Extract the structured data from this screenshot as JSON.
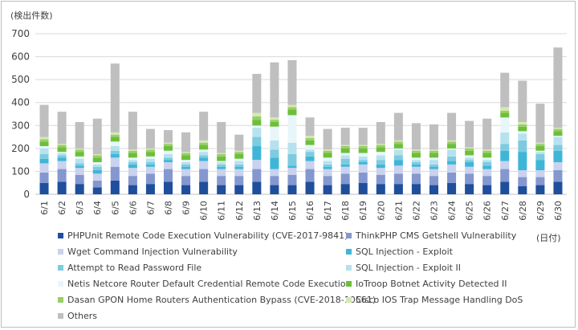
{
  "chart_data": {
    "type": "bar",
    "stacked": true,
    "ylabel": "(検出件数)",
    "xlabel": "(日付)",
    "ylim": [
      0,
      700
    ],
    "yticks": [
      0,
      100,
      200,
      300,
      400,
      500,
      600,
      700
    ],
    "grid": true,
    "legend_position": "bottom",
    "categories": [
      "6/1",
      "6/2",
      "6/3",
      "6/4",
      "6/5",
      "6/6",
      "6/7",
      "6/8",
      "6/9",
      "6/10",
      "6/11",
      "6/12",
      "6/13",
      "6/14",
      "6/15",
      "6/16",
      "6/17",
      "6/18",
      "6/19",
      "6/20",
      "6/21",
      "6/22",
      "6/23",
      "6/24",
      "6/25",
      "6/26",
      "6/27",
      "6/28",
      "6/29",
      "6/30"
    ],
    "series": [
      {
        "name": "PHPUnit Remote Code Execution Vulnerability (CVE-2017-9841)",
        "color": "#1f4e9c",
        "values": [
          50,
          55,
          45,
          30,
          60,
          40,
          45,
          55,
          40,
          55,
          40,
          40,
          55,
          40,
          40,
          55,
          40,
          45,
          50,
          45,
          45,
          45,
          40,
          50,
          45,
          40,
          55,
          35,
          40,
          55
        ]
      },
      {
        "name": "ThinkPHP CMS Getshell Vulnerability",
        "color": "#8497cf",
        "values": [
          45,
          55,
          40,
          30,
          60,
          40,
          45,
          55,
          40,
          55,
          40,
          40,
          55,
          40,
          45,
          55,
          40,
          45,
          45,
          40,
          45,
          45,
          40,
          45,
          45,
          40,
          55,
          40,
          35,
          50
        ]
      },
      {
        "name": "Wget Command Injection Vulnerability",
        "color": "#c9d2ee",
        "values": [
          40,
          35,
          30,
          30,
          40,
          35,
          30,
          30,
          30,
          35,
          30,
          30,
          40,
          30,
          30,
          35,
          30,
          30,
          35,
          30,
          35,
          30,
          30,
          35,
          30,
          30,
          35,
          30,
          30,
          35
        ]
      },
      {
        "name": "SQL Injection - Exploit",
        "color": "#3fb6d8",
        "values": [
          20,
          15,
          10,
          15,
          15,
          15,
          10,
          10,
          10,
          15,
          10,
          10,
          60,
          50,
          10,
          20,
          10,
          10,
          10,
          15,
          25,
          10,
          10,
          15,
          20,
          15,
          45,
          80,
          45,
          50
        ]
      },
      {
        "name": "Attempt to Read Password File",
        "color": "#7ecbe0",
        "values": [
          20,
          10,
          10,
          15,
          15,
          10,
          10,
          10,
          10,
          10,
          10,
          10,
          40,
          35,
          50,
          20,
          10,
          25,
          10,
          20,
          20,
          10,
          10,
          20,
          10,
          15,
          30,
          50,
          25,
          25
        ]
      },
      {
        "name": "SQL Injection - Exploit II",
        "color": "#b6e2ef",
        "values": [
          25,
          10,
          20,
          10,
          20,
          10,
          15,
          15,
          10,
          15,
          10,
          15,
          40,
          40,
          50,
          10,
          15,
          15,
          15,
          20,
          25,
          10,
          20,
          30,
          10,
          10,
          50,
          30,
          10,
          35
        ]
      },
      {
        "name": "Netis Netcore Router Default Credential Remote Code Execution",
        "color": "#e8f6fa",
        "values": [
          10,
          5,
          10,
          10,
          20,
          10,
          10,
          15,
          10,
          10,
          5,
          10,
          10,
          60,
          120,
          20,
          15,
          10,
          15,
          15,
          5,
          10,
          10,
          5,
          10,
          10,
          65,
          10,
          5,
          5
        ]
      },
      {
        "name": "IoTroop Botnet Activity Detected II",
        "color": "#6cbf3a",
        "values": [
          20,
          20,
          20,
          20,
          20,
          20,
          20,
          20,
          20,
          20,
          20,
          20,
          25,
          20,
          25,
          20,
          20,
          20,
          20,
          20,
          20,
          20,
          20,
          20,
          20,
          20,
          20,
          20,
          20,
          20
        ]
      },
      {
        "name": "Dasan GPON Home Routers Authentication Bypass (CVE-2018-10561)",
        "color": "#9bcd6a",
        "values": [
          10,
          10,
          10,
          10,
          10,
          10,
          10,
          10,
          10,
          10,
          10,
          10,
          15,
          10,
          10,
          10,
          10,
          10,
          10,
          10,
          10,
          10,
          10,
          10,
          10,
          10,
          10,
          10,
          10,
          10
        ]
      },
      {
        "name": "Cisco IOS Trap Message Handling DoS",
        "color": "#d3e9b3",
        "values": [
          10,
          5,
          5,
          5,
          10,
          5,
          5,
          5,
          5,
          10,
          5,
          5,
          15,
          10,
          10,
          10,
          5,
          5,
          5,
          5,
          5,
          5,
          5,
          5,
          5,
          5,
          15,
          10,
          5,
          5
        ]
      },
      {
        "name": "Others",
        "color": "#bfbfbf",
        "values": [
          140,
          140,
          115,
          155,
          300,
          165,
          85,
          55,
          85,
          125,
          135,
          70,
          170,
          240,
          195,
          80,
          90,
          75,
          75,
          95,
          120,
          115,
          110,
          120,
          115,
          135,
          150,
          180,
          170,
          350
        ]
      }
    ]
  }
}
